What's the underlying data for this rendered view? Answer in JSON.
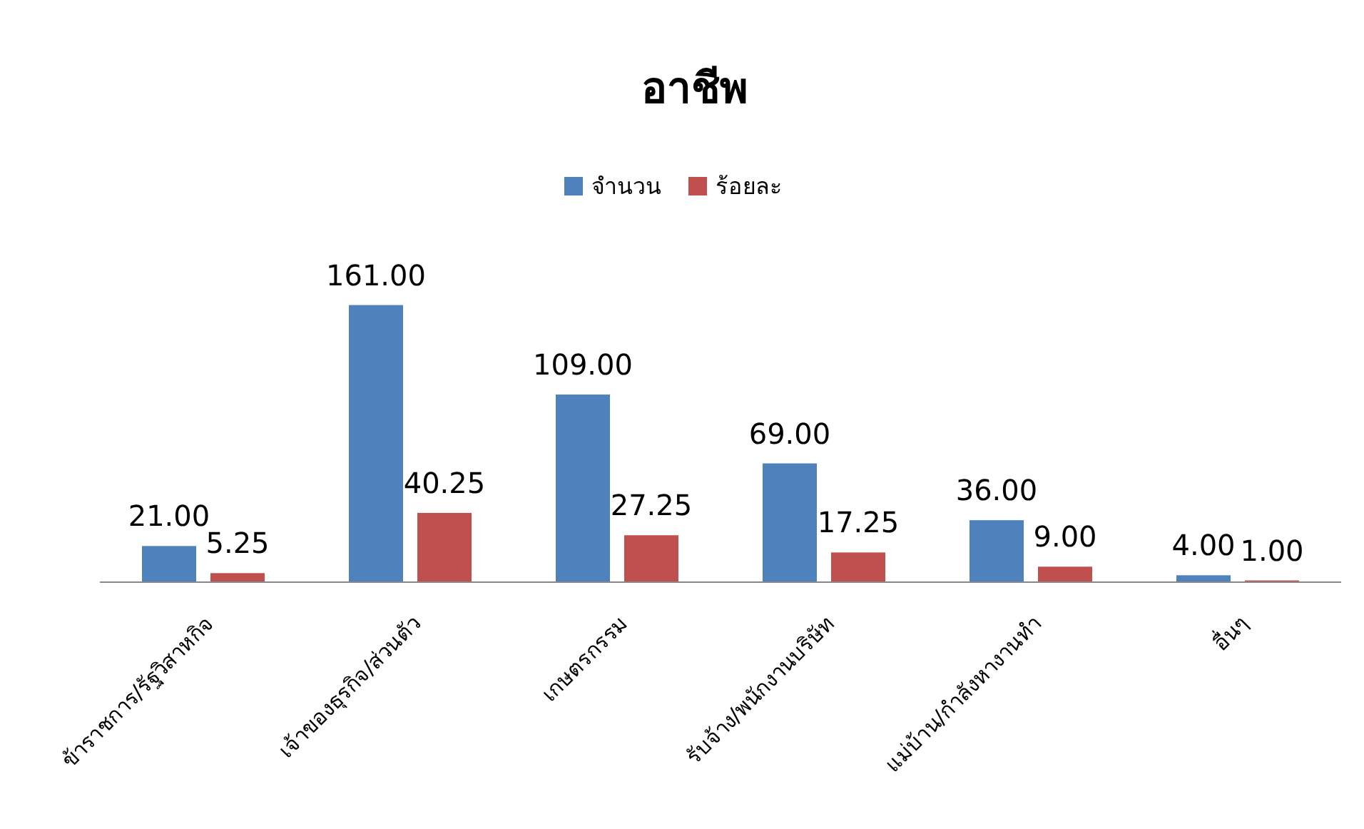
{
  "chart_data": {
    "type": "bar",
    "title": "อาชีพ",
    "categories": [
      "ข้าราชการ/รัฐวิสาหกิจ",
      "เจ้าของธุรกิจ/ส่วนตัว",
      "เกษตรกรรม",
      "รับจ้าง/พนักงานบริษัท",
      "แม่บ้าน/กำลังหางานทำ",
      "อื่นๆ"
    ],
    "series": [
      {
        "name": "จำนวน",
        "color": "#4f81bd",
        "values": [
          21,
          161,
          109,
          69,
          36,
          4
        ],
        "value_labels": [
          "21.00",
          "161.00",
          "109.00",
          "69.00",
          "36.00",
          "4.00"
        ]
      },
      {
        "name": "ร้อยละ",
        "color": "#c0504d",
        "values": [
          5.25,
          40.25,
          27.25,
          17.25,
          9,
          1
        ],
        "value_labels": [
          "5.25",
          "40.25",
          "27.25",
          "17.25",
          "9.00",
          "1.00"
        ]
      }
    ],
    "legend": "top"
  }
}
